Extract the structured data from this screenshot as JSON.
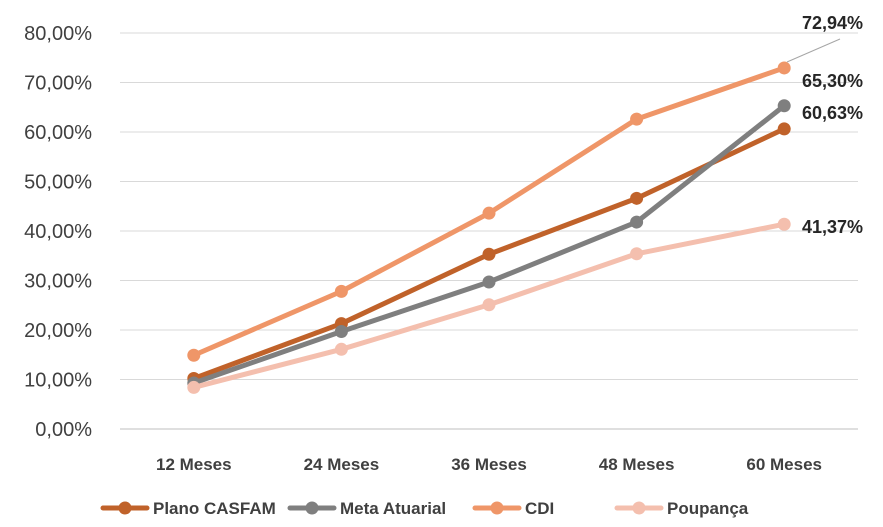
{
  "chart_data": {
    "type": "line",
    "categories": [
      "12 Meses",
      "24 Meses",
      "36 Meses",
      "48 Meses",
      "60 Meses"
    ],
    "ylim": [
      0,
      80
    ],
    "yticks": [
      "0,00%",
      "10,00%",
      "20,00%",
      "30,00%",
      "40,00%",
      "50,00%",
      "60,00%",
      "70,00%",
      "80,00%"
    ],
    "grid": true,
    "legend_position": "bottom",
    "series": [
      {
        "name": "Plano CASFAM",
        "color": "#c0622a",
        "values": [
          10.2,
          21.3,
          35.3,
          46.6,
          60.63
        ],
        "end_label": "60,63%"
      },
      {
        "name": "Meta Atuarial",
        "color": "#7f7f7f",
        "values": [
          9.3,
          19.7,
          29.7,
          41.8,
          65.3
        ],
        "end_label": "65,30%"
      },
      {
        "name": "CDI",
        "color": "#ef9668",
        "values": [
          14.9,
          27.8,
          43.6,
          62.6,
          72.94
        ],
        "end_label": "72,94%"
      },
      {
        "name": "Poupança",
        "color": "#f4bfae",
        "values": [
          8.4,
          16.1,
          25.1,
          35.4,
          41.37
        ],
        "end_label": "41,37%"
      }
    ]
  }
}
